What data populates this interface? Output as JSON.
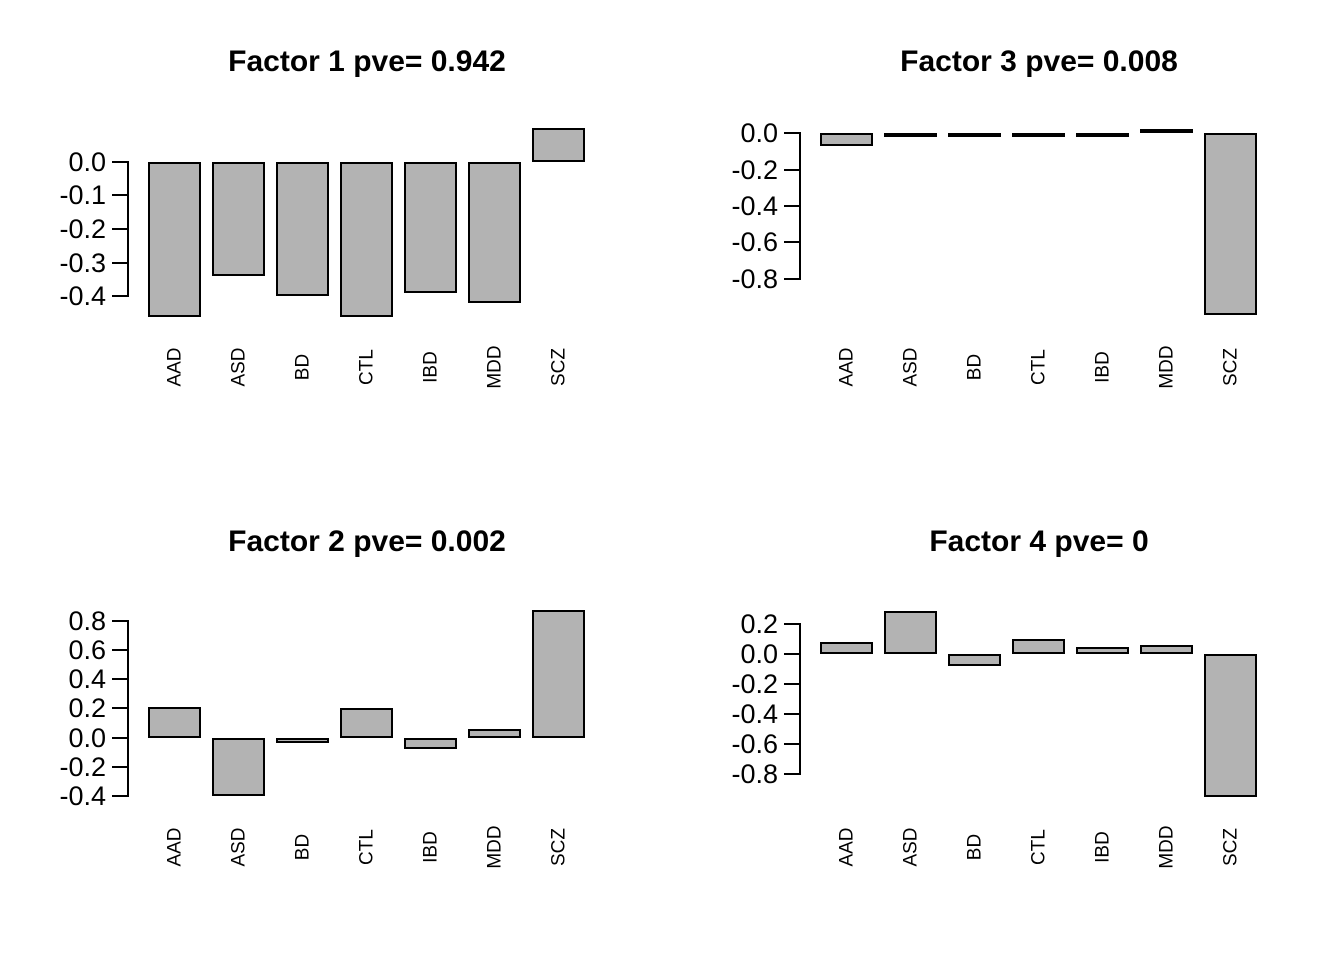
{
  "figure": {
    "background": "#ffffff",
    "text_color": "#000000",
    "bar_fill": "#b3b3b3",
    "bar_border": "#000000"
  },
  "chart_data": [
    {
      "type": "bar",
      "panel": "top-left",
      "title": "Factor 1 pve= 0.942",
      "categories": [
        "AAD",
        "ASD",
        "BD",
        "CTL",
        "IBD",
        "MDD",
        "SCZ"
      ],
      "values": [
        -0.46,
        -0.34,
        -0.4,
        -0.46,
        -0.39,
        -0.42,
        0.1
      ],
      "yticks": [
        "0.0",
        "-0.1",
        "-0.2",
        "-0.3",
        "-0.4"
      ],
      "ylim": [
        -0.482,
        0.112
      ],
      "xlabel": "",
      "ylabel": "",
      "grid": false,
      "legend": "none"
    },
    {
      "type": "bar",
      "panel": "top-right",
      "title": "Factor 3 pve= 0.008",
      "categories": [
        "AAD",
        "ASD",
        "BD",
        "CTL",
        "IBD",
        "MDD",
        "SCZ"
      ],
      "values": [
        -0.07,
        -0.01,
        -0.005,
        -0.01,
        -0.02,
        0.01,
        -1.0
      ],
      "yticks": [
        "0.0",
        "-0.2",
        "-0.4",
        "-0.6",
        "-0.8"
      ],
      "ylim": [
        -1.048,
        0.051
      ],
      "xlabel": "",
      "ylabel": "",
      "grid": false,
      "legend": "none"
    },
    {
      "type": "bar",
      "panel": "bottom-left",
      "title": "Factor 2 pve= 0.002",
      "categories": [
        "AAD",
        "ASD",
        "BD",
        "CTL",
        "IBD",
        "MDD",
        "SCZ"
      ],
      "values": [
        0.21,
        -0.4,
        -0.04,
        0.2,
        -0.08,
        0.06,
        0.87
      ],
      "yticks": [
        "0.8",
        "0.6",
        "0.4",
        "0.2",
        "0.0",
        "-0.2",
        "-0.4"
      ],
      "ylim": [
        -0.455,
        0.914
      ],
      "xlabel": "",
      "ylabel": "",
      "grid": false,
      "legend": "none"
    },
    {
      "type": "bar",
      "panel": "bottom-right",
      "title": "Factor 4 pve= 0",
      "categories": [
        "AAD",
        "ASD",
        "BD",
        "CTL",
        "IBD",
        "MDD",
        "SCZ"
      ],
      "values": [
        0.08,
        0.29,
        -0.08,
        0.1,
        0.05,
        0.06,
        -0.95
      ],
      "yticks": [
        "0.2",
        "0.0",
        "-0.2",
        "-0.4",
        "-0.6",
        "-0.8"
      ],
      "ylim": [
        -0.998,
        0.335
      ],
      "xlabel": "",
      "ylabel": "",
      "grid": false,
      "legend": "none"
    }
  ]
}
